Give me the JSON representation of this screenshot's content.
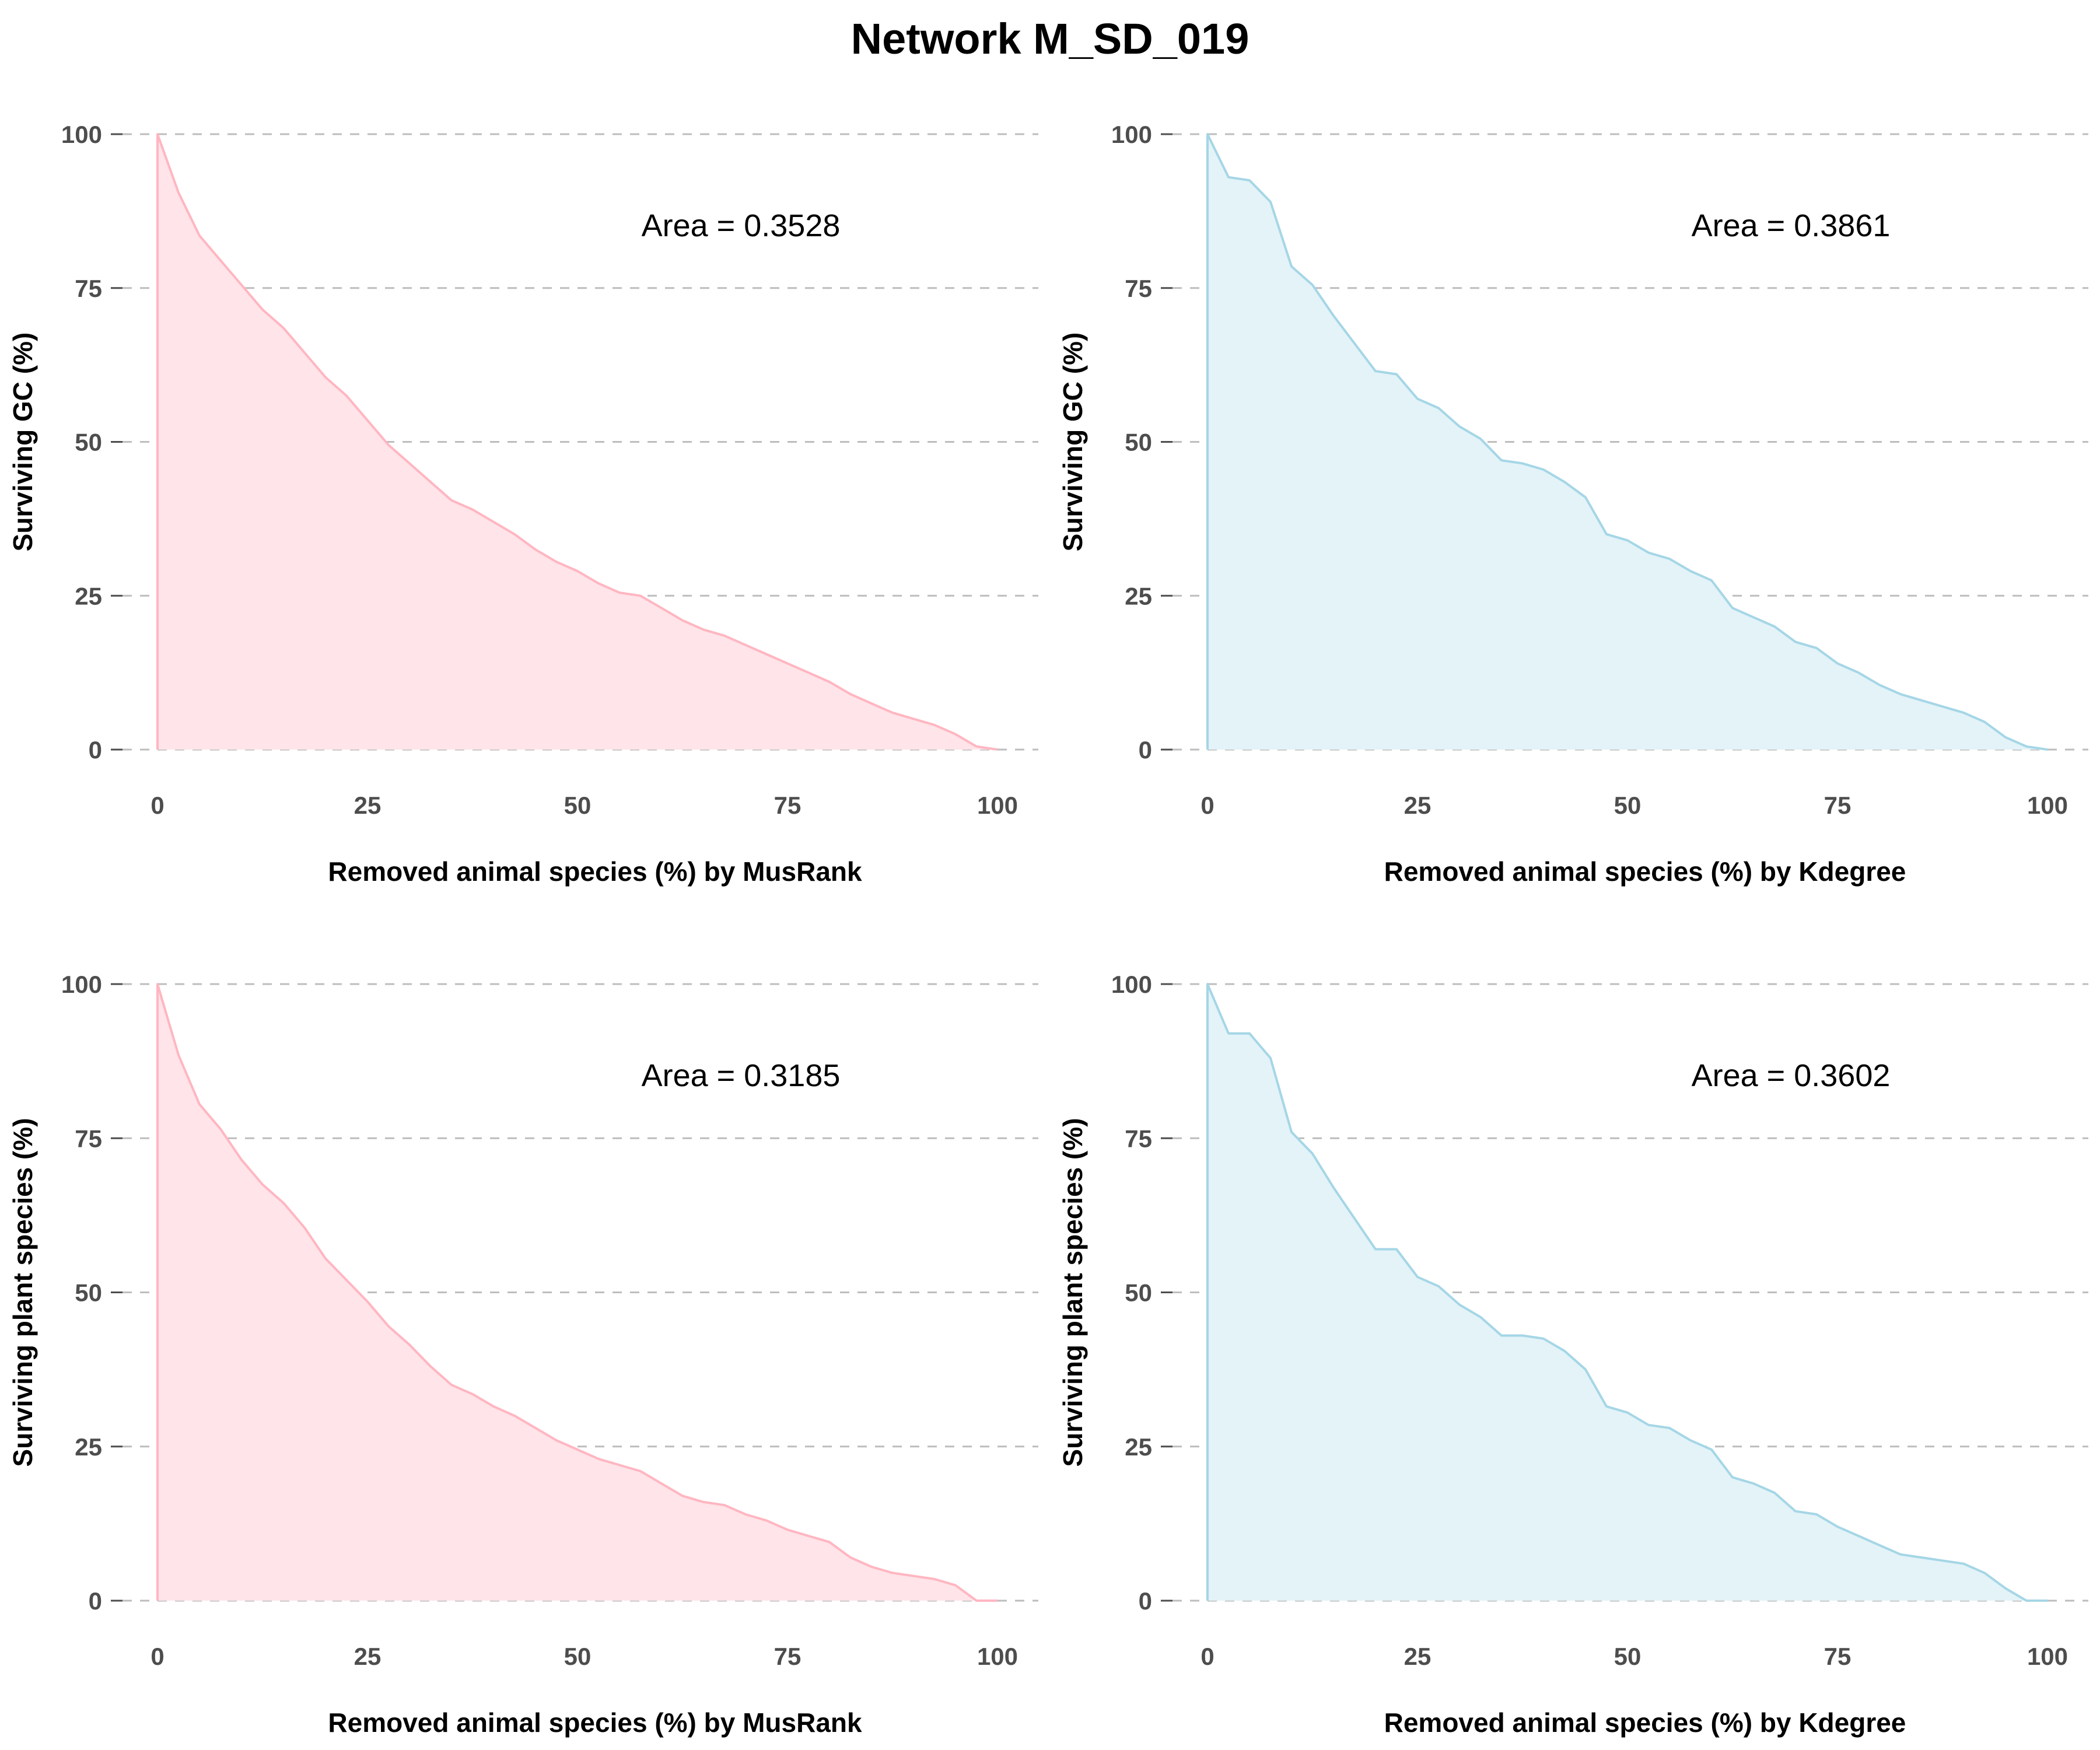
{
  "title": "Network M_SD_019",
  "colors": {
    "pink_line": "#ffb6c1",
    "pink_fill": "#ffe4e9",
    "blue_line": "#a5d6e6",
    "blue_fill": "#e3f3f8",
    "grid": "#bdbdbd"
  },
  "chart_data": [
    {
      "type": "area",
      "xlabel": "Removed animal species (%) by MusRank",
      "ylabel": "Surviving GC (%)",
      "annotation": "Area = 0.3528",
      "xlim": [
        0,
        100
      ],
      "ylim": [
        0,
        100
      ],
      "xticks": [
        "0",
        "25",
        "50",
        "75",
        "100"
      ],
      "yticks": [
        "0",
        "25",
        "50",
        "75",
        "100"
      ],
      "color": "pink",
      "x": [
        0,
        2.5,
        5,
        7.5,
        10,
        12.5,
        15,
        17.5,
        20,
        22.5,
        25,
        27.5,
        30,
        32.5,
        35,
        37.5,
        40,
        42.5,
        45,
        47.5,
        50,
        52.5,
        55,
        57.5,
        60,
        62.5,
        65,
        67.5,
        70,
        72.5,
        75,
        77.5,
        80,
        82.5,
        85,
        87.5,
        90,
        92.5,
        95,
        97.5,
        100
      ],
      "y": [
        100,
        90.5,
        83.5,
        79.5,
        75.5,
        71.5,
        68.5,
        64.5,
        60.5,
        57.5,
        53.5,
        49.5,
        46.5,
        43.5,
        40.5,
        39,
        37,
        35,
        32.5,
        30.5,
        29,
        27,
        25.5,
        25,
        23,
        21,
        19.5,
        18.5,
        17,
        15.5,
        14,
        12.5,
        11,
        9,
        7.5,
        6,
        5,
        4,
        2.5,
        0.5,
        0
      ]
    },
    {
      "type": "area",
      "xlabel": "Removed animal species (%) by Kdegree",
      "ylabel": "Surviving GC (%)",
      "annotation": "Area = 0.3861",
      "xlim": [
        0,
        100
      ],
      "ylim": [
        0,
        100
      ],
      "xticks": [
        "0",
        "25",
        "50",
        "75",
        "100"
      ],
      "yticks": [
        "0",
        "25",
        "50",
        "75",
        "100"
      ],
      "color": "blue",
      "x": [
        0,
        2.5,
        5,
        7.5,
        10,
        12.5,
        15,
        17.5,
        20,
        22.5,
        25,
        27.5,
        30,
        32.5,
        35,
        37.5,
        40,
        42.5,
        45,
        47.5,
        50,
        52.5,
        55,
        57.5,
        60,
        62.5,
        65,
        67.5,
        70,
        72.5,
        75,
        77.5,
        80,
        82.5,
        85,
        87.5,
        90,
        92.5,
        95,
        97.5,
        100
      ],
      "y": [
        100,
        93,
        92.5,
        89,
        78.5,
        75.5,
        70.5,
        66,
        61.5,
        61,
        57,
        55.5,
        52.5,
        50.5,
        47,
        46.5,
        45.5,
        43.5,
        41,
        35,
        34,
        32,
        31,
        29,
        27.5,
        23,
        21.5,
        20,
        17.5,
        16.5,
        14,
        12.5,
        10.5,
        9,
        8,
        7,
        6,
        4.5,
        2,
        0.5,
        0
      ]
    },
    {
      "type": "area",
      "xlabel": "Removed animal species (%) by MusRank",
      "ylabel": "Surviving plant species (%)",
      "annotation": "Area = 0.3185",
      "xlim": [
        0,
        100
      ],
      "ylim": [
        0,
        100
      ],
      "xticks": [
        "0",
        "25",
        "50",
        "75",
        "100"
      ],
      "yticks": [
        "0",
        "25",
        "50",
        "75",
        "100"
      ],
      "color": "pink",
      "x": [
        0,
        2.5,
        5,
        7.5,
        10,
        12.5,
        15,
        17.5,
        20,
        22.5,
        25,
        27.5,
        30,
        32.5,
        35,
        37.5,
        40,
        42.5,
        45,
        47.5,
        50,
        52.5,
        55,
        57.5,
        60,
        62.5,
        65,
        67.5,
        70,
        72.5,
        75,
        77.5,
        80,
        82.5,
        85,
        87.5,
        90,
        92.5,
        95,
        97.5,
        100
      ],
      "y": [
        100,
        88.5,
        80.5,
        76.5,
        71.5,
        67.5,
        64.5,
        60.5,
        55.5,
        52,
        48.5,
        44.5,
        41.5,
        38,
        35,
        33.5,
        31.5,
        30,
        28,
        26,
        24.5,
        23,
        22,
        21,
        19,
        17,
        16,
        15.5,
        14,
        13,
        11.5,
        10.5,
        9.5,
        7,
        5.5,
        4.5,
        4,
        3.5,
        2.5,
        0,
        0
      ]
    },
    {
      "type": "area",
      "xlabel": "Removed animal species (%) by Kdegree",
      "ylabel": "Surviving plant species (%)",
      "annotation": "Area = 0.3602",
      "xlim": [
        0,
        100
      ],
      "ylim": [
        0,
        100
      ],
      "xticks": [
        "0",
        "25",
        "50",
        "75",
        "100"
      ],
      "yticks": [
        "0",
        "25",
        "50",
        "75",
        "100"
      ],
      "color": "blue",
      "x": [
        0,
        2.5,
        5,
        7.5,
        10,
        12.5,
        15,
        17.5,
        20,
        22.5,
        25,
        27.5,
        30,
        32.5,
        35,
        37.5,
        40,
        42.5,
        45,
        47.5,
        50,
        52.5,
        55,
        57.5,
        60,
        62.5,
        65,
        67.5,
        70,
        72.5,
        75,
        77.5,
        80,
        82.5,
        85,
        87.5,
        90,
        92.5,
        95,
        97.5,
        100
      ],
      "y": [
        100,
        92,
        92,
        88,
        76,
        72.5,
        67,
        62,
        57,
        57,
        52.5,
        51,
        48,
        46,
        43,
        43,
        42.5,
        40.5,
        37.5,
        31.5,
        30.5,
        28.5,
        28,
        26,
        24.5,
        20,
        19,
        17.5,
        14.5,
        14,
        12,
        10.5,
        9,
        7.5,
        7,
        6.5,
        6,
        4.5,
        2,
        0,
        0
      ]
    }
  ]
}
